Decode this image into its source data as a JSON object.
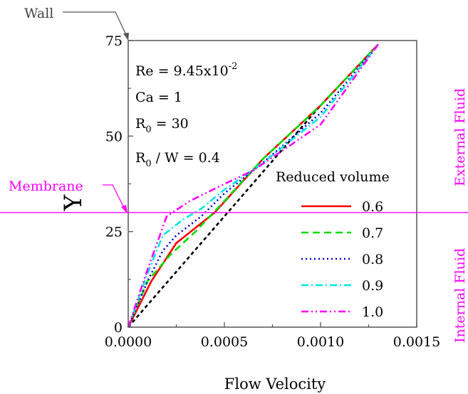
{
  "chart_data": {
    "type": "line",
    "xlabel": "Flow Velocity",
    "ylabel": "Y",
    "xlim": [
      0,
      0.0015
    ],
    "ylim": [
      0,
      75
    ],
    "xticks": [
      {
        "v": 0,
        "label": "0.0000"
      },
      {
        "v": 0.0005,
        "label": "0.0005"
      },
      {
        "v": 0.001,
        "label": "0.0010"
      },
      {
        "v": 0.0015,
        "label": "0.0015"
      }
    ],
    "yticks": [
      {
        "v": 0,
        "label": "0"
      },
      {
        "v": 25,
        "label": "25"
      },
      {
        "v": 50,
        "label": "50"
      },
      {
        "v": 75,
        "label": "75"
      }
    ],
    "annotations": {
      "re": "Re = 9.45x10",
      "re_exp": "-2",
      "ca": "Ca = 1",
      "r0_a": "R",
      "r0_a_sub": "0",
      "r0_a_rest": " = 30",
      "r0_b": "R",
      "r0_b_sub": "0",
      "r0_b_rest": " / W = 0.4",
      "wall": "Wall",
      "membrane": "Membrane",
      "membrane_y": 30,
      "external": "External Fluid",
      "internal": "Internal Fluid",
      "membrane_color": "#ff00ff"
    },
    "legend_title": "Reduced volume",
    "series": [
      {
        "name": "",
        "color": "#000000",
        "dash": "5,4",
        "legend": false,
        "points": [
          [
            0,
            0
          ],
          [
            0.0005,
            29
          ],
          [
            0.001,
            58
          ],
          [
            0.0013,
            74
          ]
        ]
      },
      {
        "name": "0.6",
        "color": "#ff0000",
        "dash": "",
        "legend": true,
        "points": [
          [
            0,
            0
          ],
          [
            0.00012,
            12
          ],
          [
            0.00025,
            22
          ],
          [
            0.00045,
            30
          ],
          [
            0.0007,
            44
          ],
          [
            0.001,
            58
          ],
          [
            0.0013,
            74
          ]
        ]
      },
      {
        "name": "0.7",
        "color": "#00dd00",
        "dash": "10,6",
        "legend": true,
        "points": [
          [
            0,
            0
          ],
          [
            0.0001,
            12
          ],
          [
            0.00022,
            19
          ],
          [
            0.00035,
            25
          ],
          [
            0.0005,
            33
          ],
          [
            0.0007,
            44
          ],
          [
            0.001,
            58
          ],
          [
            0.0013,
            74
          ]
        ]
      },
      {
        "name": "0.8",
        "color": "#0000cc",
        "dash": "2,4",
        "legend": true,
        "points": [
          [
            0,
            0
          ],
          [
            0.0001,
            12
          ],
          [
            0.00018,
            20
          ],
          [
            0.00025,
            24
          ],
          [
            0.00038,
            29
          ],
          [
            0.0005,
            35
          ],
          [
            0.0007,
            43
          ],
          [
            0.001,
            56
          ],
          [
            0.0013,
            74
          ]
        ]
      },
      {
        "name": "0.9",
        "color": "#00e5e5",
        "dash": "10,4,2,4",
        "legend": true,
        "points": [
          [
            0,
            0
          ],
          [
            0.0001,
            14
          ],
          [
            0.00018,
            24
          ],
          [
            0.00028,
            28
          ],
          [
            0.00038,
            31
          ],
          [
            0.0005,
            36
          ],
          [
            0.0007,
            43
          ],
          [
            0.001,
            55
          ],
          [
            0.0013,
            74
          ]
        ]
      },
      {
        "name": "1.0",
        "color": "#ff00ff",
        "dash": "10,4,2,4,2,4",
        "legend": true,
        "points": [
          [
            0,
            0
          ],
          [
            0.0001,
            15
          ],
          [
            0.0002,
            29
          ],
          [
            0.00032,
            33
          ],
          [
            0.00048,
            37
          ],
          [
            0.00065,
            41
          ],
          [
            0.001,
            53
          ],
          [
            0.0013,
            74
          ]
        ]
      }
    ]
  }
}
